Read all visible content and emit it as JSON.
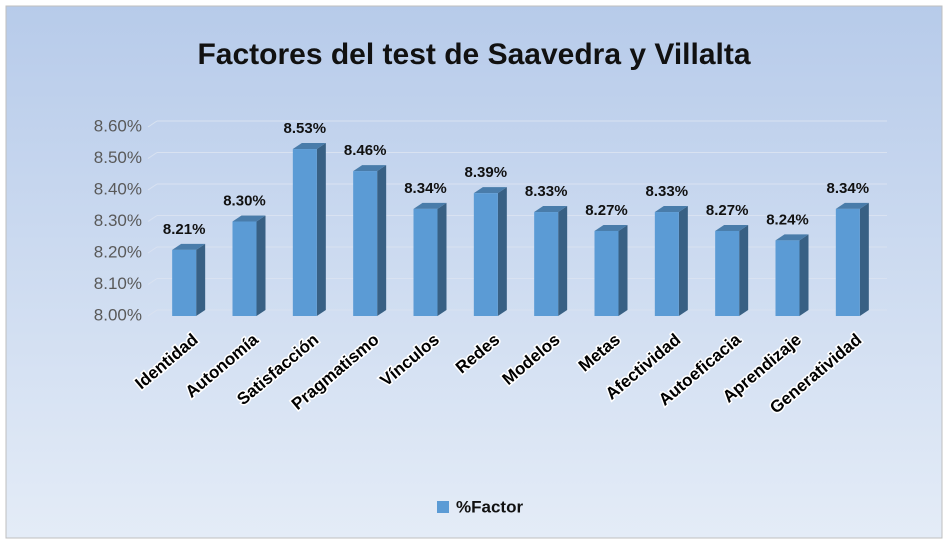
{
  "chart_data": {
    "type": "bar",
    "title": "Factores del test de Saavedra y Villalta",
    "categories": [
      "Identidad",
      "Autonomía",
      "Satisfacción",
      "Pragmatismo",
      "Vínculos",
      "Redes",
      "Modelos",
      "Metas",
      "Afectividad",
      "Autoeficacia",
      "Aprendizaje",
      "Generatividad"
    ],
    "series": [
      {
        "name": "%Factor",
        "color": "#5b9bd5",
        "values": [
          8.21,
          8.3,
          8.53,
          8.46,
          8.34,
          8.39,
          8.33,
          8.27,
          8.33,
          8.27,
          8.24,
          8.34
        ],
        "value_labels": [
          "8.21%",
          "8.30%",
          "8.53%",
          "8.46%",
          "8.34%",
          "8.39%",
          "8.33%",
          "8.27%",
          "8.33%",
          "8.27%",
          "8.24%",
          "8.34%"
        ]
      }
    ],
    "ylim": [
      8.0,
      8.6
    ],
    "yticks": [
      {
        "value": 8.0,
        "label": "8.00%"
      },
      {
        "value": 8.1,
        "label": "8.10%"
      },
      {
        "value": 8.2,
        "label": "8.20%"
      },
      {
        "value": 8.3,
        "label": "8.30%"
      },
      {
        "value": 8.4,
        "label": "8.40%"
      },
      {
        "value": 8.5,
        "label": "8.50%"
      },
      {
        "value": 8.6,
        "label": "8.60%"
      }
    ],
    "grid": true,
    "legend": "bottom"
  }
}
